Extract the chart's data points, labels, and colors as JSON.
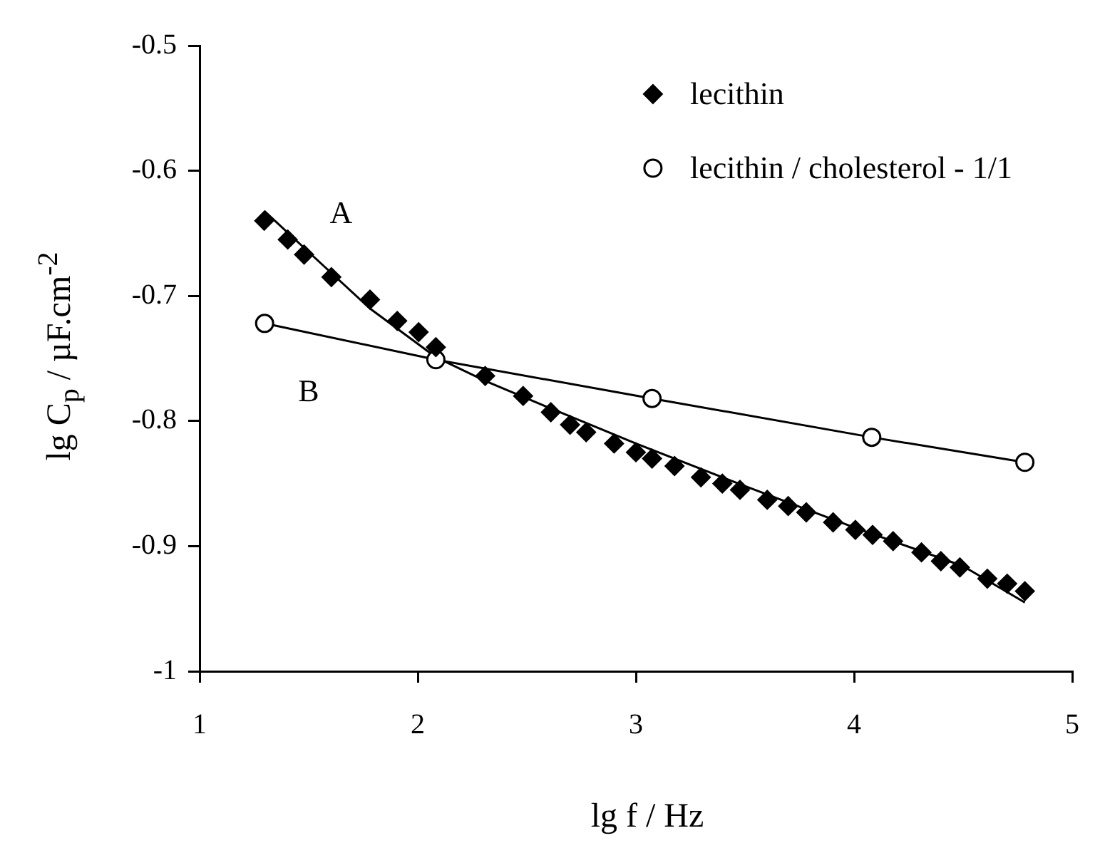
{
  "chart_data": {
    "type": "scatter",
    "xlabel": "lg f / Hz",
    "ylabel": "lg C$_{p}$ / µF.cm$^{-2}$",
    "xlim": [
      1,
      5
    ],
    "xticks": [
      1,
      2,
      3,
      4,
      5
    ],
    "ylim": [
      -1,
      -0.5
    ],
    "yticks": [
      -1,
      -0.9,
      -0.8,
      -0.7,
      -0.6,
      -0.5
    ],
    "grid": false,
    "legend": "top right",
    "annotations": [
      "A",
      "B"
    ],
    "series": [
      {
        "name": "lecithin",
        "marker": "diamond",
        "color": "#000000",
        "x": [
          1.296,
          1.404,
          1.479,
          1.604,
          1.781,
          1.906,
          2.004,
          2.083,
          2.309,
          2.483,
          2.61,
          2.698,
          2.772,
          2.9,
          3.0,
          3.074,
          3.177,
          3.298,
          3.396,
          3.477,
          3.602,
          3.698,
          3.781,
          3.904,
          4.006,
          4.085,
          4.179,
          4.309,
          4.398,
          4.485,
          4.611,
          4.702,
          4.783
        ],
        "values": [
          -0.64,
          -0.655,
          -0.667,
          -0.685,
          -0.703,
          -0.72,
          -0.729,
          -0.741,
          -0.764,
          -0.78,
          -0.793,
          -0.803,
          -0.809,
          -0.818,
          -0.825,
          -0.83,
          -0.836,
          -0.845,
          -0.85,
          -0.855,
          -0.863,
          -0.868,
          -0.873,
          -0.881,
          -0.887,
          -0.891,
          -0.896,
          -0.905,
          -0.912,
          -0.917,
          -0.926,
          -0.93,
          -0.936
        ]
      },
      {
        "name": "lecithin / cholesterol - 1/1",
        "type": "line",
        "marker": "circle",
        "color": "#000000",
        "x": [
          1.298,
          2.083,
          3.074,
          4.081,
          4.783
        ],
        "values": [
          -0.722,
          -0.751,
          -0.782,
          -0.813,
          -0.833
        ]
      },
      {
        "type": "line",
        "marker": "none",
        "color": "#000000",
        "x": [
          1.296,
          1.5,
          1.78,
          2.083,
          2.31,
          2.61,
          3.0,
          3.5,
          4.0,
          4.5,
          4.783
        ],
        "values": [
          -0.632,
          -0.665,
          -0.71,
          -0.749,
          -0.768,
          -0.79,
          -0.818,
          -0.852,
          -0.885,
          -0.916,
          -0.945
        ]
      }
    ]
  }
}
